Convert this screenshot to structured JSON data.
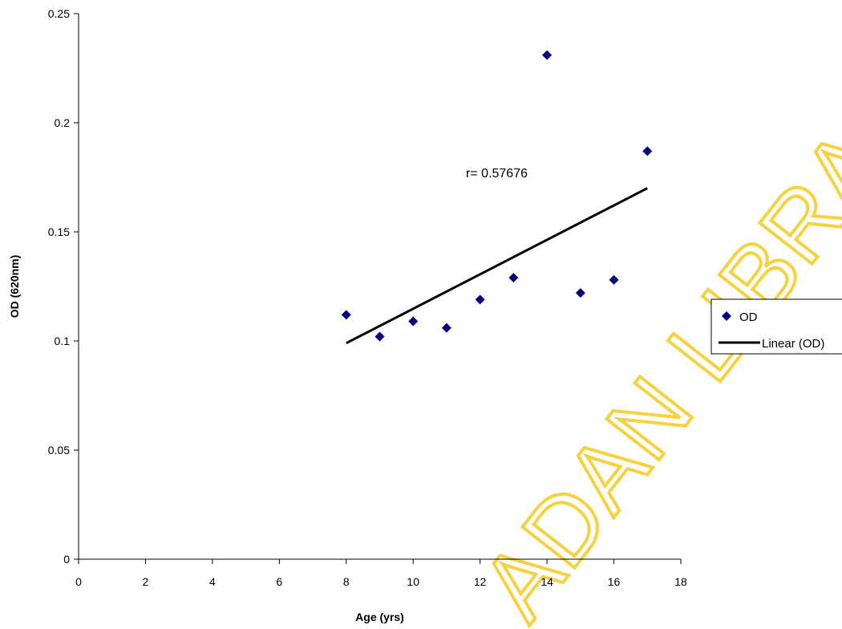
{
  "chart_data": {
    "type": "scatter",
    "xlabel": "Age (yrs)",
    "ylabel": "OD (620nm)",
    "xlim": [
      0,
      18
    ],
    "ylim": [
      0,
      0.25
    ],
    "x_ticks": [
      0,
      2,
      4,
      6,
      8,
      10,
      12,
      14,
      16,
      18
    ],
    "y_ticks": [
      0,
      0.05,
      0.1,
      0.15,
      0.2,
      0.25
    ],
    "y_tick_labels": [
      "0",
      "0.05",
      "0.1",
      "0.15",
      "0.2",
      "0.25"
    ],
    "grid": false,
    "legend_position": "right",
    "series": [
      {
        "name": "OD",
        "kind": "scatter",
        "marker": "diamond",
        "color": "#000080",
        "x": [
          8,
          9,
          10,
          11,
          12,
          13,
          14,
          15,
          16,
          17
        ],
        "y": [
          0.112,
          0.102,
          0.109,
          0.106,
          0.119,
          0.129,
          0.231,
          0.122,
          0.128,
          0.187
        ]
      },
      {
        "name": "Linear (OD)",
        "kind": "line",
        "color": "#000000",
        "x": [
          8,
          17
        ],
        "y": [
          0.099,
          0.17
        ]
      }
    ],
    "annotation": "r= 0.57676"
  },
  "watermark": {
    "text": "ADAN LIBRARY",
    "color": "#f4c400"
  }
}
